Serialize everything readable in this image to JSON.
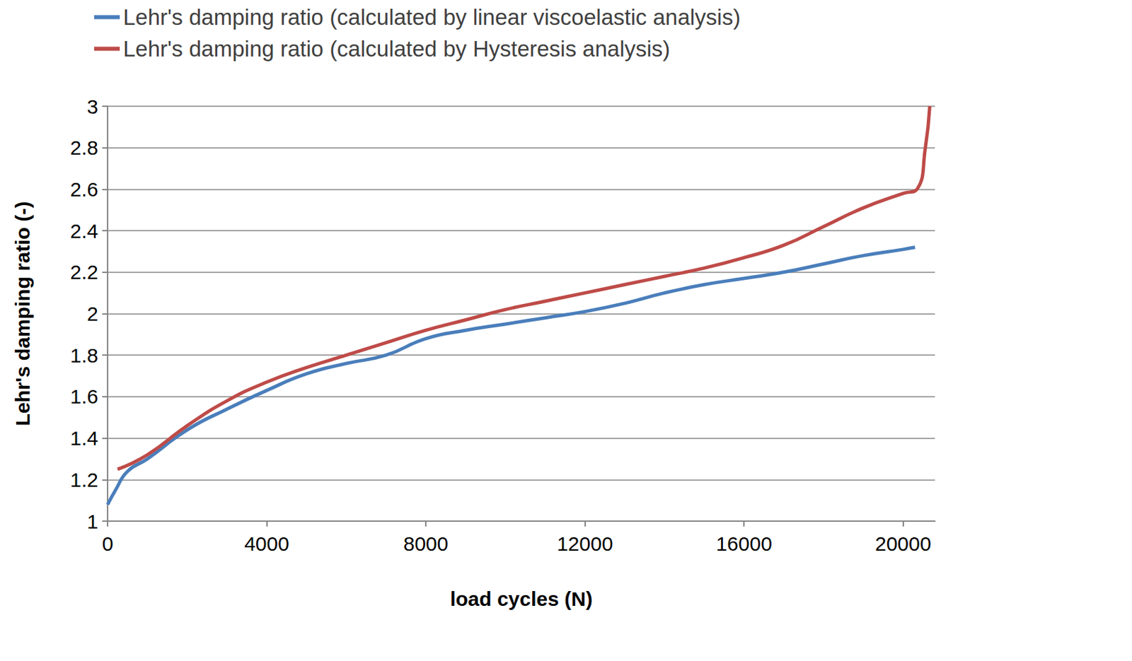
{
  "chart_data": {
    "type": "line",
    "x_label": "load cycles (N)",
    "y_label": "Lehr's damping ratio (-)",
    "xlim": [
      0,
      20800
    ],
    "xticks": [
      0,
      4000,
      8000,
      12000,
      16000,
      20000
    ],
    "ylim": [
      1,
      3
    ],
    "yticks": [
      1,
      1.2,
      1.4,
      1.6,
      1.8,
      2,
      2.2,
      2.4,
      2.6,
      2.8,
      3
    ],
    "grid": true,
    "legend": "top-left",
    "series": [
      {
        "name": "Lehr's damping ratio (calculated by linear viscoelastic analysis)",
        "color": "#4a7ebb",
        "x": [
          0,
          200,
          500,
          1000,
          2000,
          3000,
          4000,
          5000,
          6000,
          7000,
          8000,
          9000,
          10000,
          11000,
          12000,
          13000,
          14000,
          15000,
          16000,
          17000,
          18000,
          19000,
          20000,
          20300
        ],
        "values": [
          1.08,
          1.15,
          1.24,
          1.3,
          1.44,
          1.54,
          1.63,
          1.71,
          1.76,
          1.8,
          1.88,
          1.92,
          1.95,
          1.98,
          2.01,
          2.05,
          2.1,
          2.14,
          2.17,
          2.2,
          2.24,
          2.28,
          2.31,
          2.32
        ]
      },
      {
        "name": "Lehr's damping ratio (calculated by Hysteresis analysis)",
        "color": "#be4b48",
        "x": [
          250,
          1000,
          2000,
          3000,
          4000,
          5000,
          6000,
          7000,
          8000,
          9000,
          10000,
          11000,
          12000,
          13000,
          14000,
          15000,
          16000,
          17000,
          18000,
          19000,
          20000,
          20350,
          20560,
          20670
        ],
        "values": [
          1.25,
          1.32,
          1.46,
          1.58,
          1.67,
          1.74,
          1.8,
          1.86,
          1.92,
          1.97,
          2.02,
          2.06,
          2.1,
          2.14,
          2.18,
          2.22,
          2.27,
          2.33,
          2.42,
          2.51,
          2.58,
          2.6,
          2.8,
          3
        ]
      }
    ]
  }
}
